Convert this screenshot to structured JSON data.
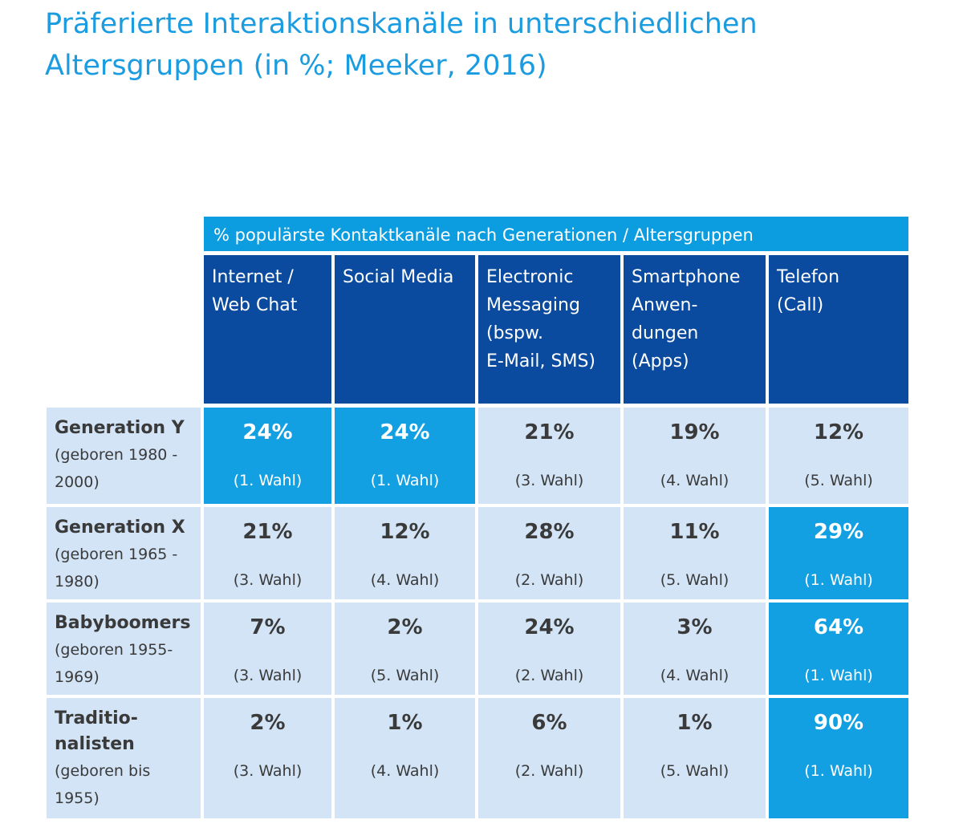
{
  "title": [
    "Präferierte Interaktionskanäle in unterschiedlichen",
    "Altersgruppen (in %; Meeker, 2016)"
  ],
  "table": {
    "header": "% populärste Kontaktkanäle nach Generationen / Altersgruppen",
    "columns": [
      [
        "Internet /",
        "Web Chat"
      ],
      [
        "Social Media"
      ],
      [
        "Electronic",
        "Messaging",
        "(bspw.",
        "E-Mail, SMS)"
      ],
      [
        "Smartphone",
        "Anwen-",
        "dungen",
        "(Apps)"
      ],
      [
        "Telefon",
        "(Call)"
      ]
    ],
    "rows": [
      {
        "name": [
          "Generation Y"
        ],
        "born": [
          "(geboren 1980 -",
          "2000)"
        ],
        "cells": [
          {
            "value": "24%",
            "rank": "(1. Wahl)",
            "highlight": true
          },
          {
            "value": "24%",
            "rank": "(1. Wahl)",
            "highlight": true
          },
          {
            "value": "21%",
            "rank": "(3. Wahl)",
            "highlight": false
          },
          {
            "value": "19%",
            "rank": "(4. Wahl)",
            "highlight": false
          },
          {
            "value": "12%",
            "rank": "(5. Wahl)",
            "highlight": false
          }
        ]
      },
      {
        "name": [
          "Generation X"
        ],
        "born": [
          "(geboren 1965 -",
          "1980)"
        ],
        "cells": [
          {
            "value": "21%",
            "rank": "(3. Wahl)",
            "highlight": false
          },
          {
            "value": "12%",
            "rank": "(4. Wahl)",
            "highlight": false
          },
          {
            "value": "28%",
            "rank": "(2. Wahl)",
            "highlight": false
          },
          {
            "value": "11%",
            "rank": "(5. Wahl)",
            "highlight": false
          },
          {
            "value": "29%",
            "rank": "(1. Wahl)",
            "highlight": true
          }
        ]
      },
      {
        "name": [
          "Babyboomers"
        ],
        "born": [
          "(geboren 1955-",
          "1969)"
        ],
        "cells": [
          {
            "value": "7%",
            "rank": "(3. Wahl)",
            "highlight": false
          },
          {
            "value": "2%",
            "rank": "(5. Wahl)",
            "highlight": false
          },
          {
            "value": "24%",
            "rank": "(2. Wahl)",
            "highlight": false
          },
          {
            "value": "3%",
            "rank": "(4. Wahl)",
            "highlight": false
          },
          {
            "value": "64%",
            "rank": "(1. Wahl)",
            "highlight": true
          }
        ]
      },
      {
        "name": [
          "Traditio-",
          "nalisten"
        ],
        "born": [
          "(geboren bis",
          "1955)"
        ],
        "cells": [
          {
            "value": "2%",
            "rank": "(3. Wahl)",
            "highlight": false
          },
          {
            "value": "1%",
            "rank": "(4. Wahl)",
            "highlight": false
          },
          {
            "value": "6%",
            "rank": "(2. Wahl)",
            "highlight": false
          },
          {
            "value": "1%",
            "rank": "(5. Wahl)",
            "highlight": false
          },
          {
            "value": "90%",
            "rank": "(1. Wahl)",
            "highlight": true
          }
        ]
      }
    ]
  }
}
